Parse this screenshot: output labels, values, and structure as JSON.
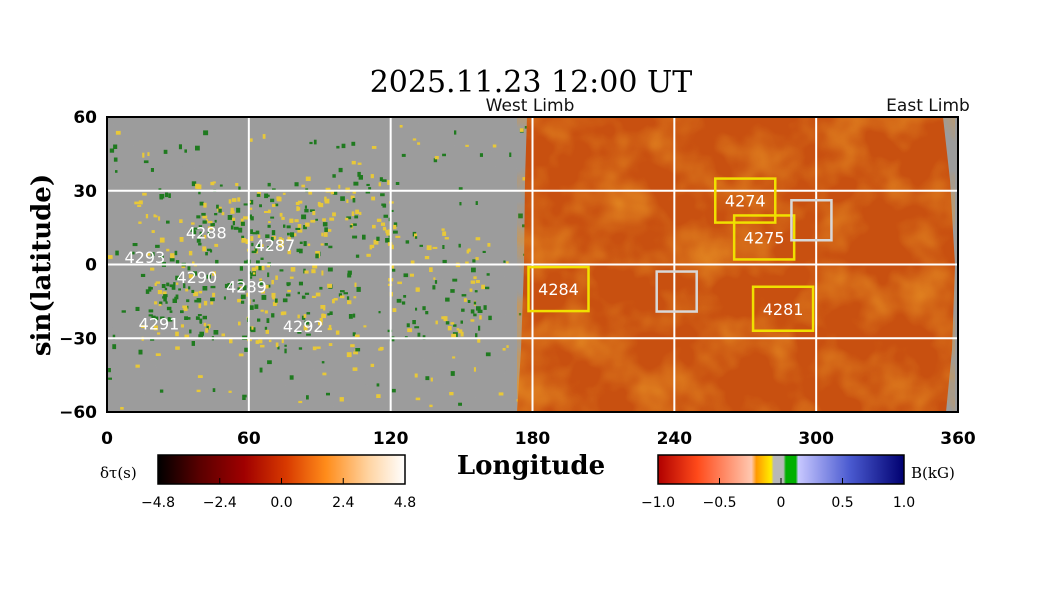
{
  "chart_data": {
    "type": "heatmap",
    "title": "2025.11.23 12:00 UT",
    "xlabel": "Longitude",
    "ylabel": "sin(latitude)",
    "xlim": [
      0,
      360
    ],
    "ylim": [
      -60,
      60
    ],
    "xticks": [
      "0",
      "60",
      "120",
      "180",
      "240",
      "300",
      "360"
    ],
    "yticks": [
      "60",
      "30",
      "0",
      "−30",
      "−60"
    ],
    "grid": true,
    "annotations": {
      "west_limb": "West Limb",
      "east_limb": "East Limb"
    },
    "active_regions": [
      {
        "label": "4293",
        "lon": 16,
        "lat": 3,
        "side": "near"
      },
      {
        "label": "4288",
        "lon": 42,
        "lat": 13,
        "side": "near"
      },
      {
        "label": "4287",
        "lon": 71,
        "lat": 8,
        "side": "near"
      },
      {
        "label": "4290",
        "lon": 38,
        "lat": -5,
        "side": "near"
      },
      {
        "label": "4289",
        "lon": 59,
        "lat": -9,
        "side": "near"
      },
      {
        "label": "4291",
        "lon": 22,
        "lat": -24,
        "side": "near"
      },
      {
        "label": "4292",
        "lon": 83,
        "lat": -25,
        "side": "near"
      },
      {
        "label": "4274",
        "lon": 270,
        "lat": 26,
        "side": "far"
      },
      {
        "label": "4275",
        "lon": 278,
        "lat": 11,
        "side": "far"
      },
      {
        "label": "4284",
        "lon": 191,
        "lat": -10,
        "side": "far"
      },
      {
        "label": "4281",
        "lon": 286,
        "lat": -18,
        "side": "far"
      }
    ],
    "unlabeled_boxes": [
      {
        "lon": 298,
        "lat": 18
      },
      {
        "lon": 241,
        "lat": -11
      }
    ],
    "colorbars": [
      {
        "label": "δτ(s)",
        "ticks": [
          "−4.8",
          "−2.4",
          "0.0",
          "2.4",
          "4.8"
        ],
        "range": [
          -4.8,
          4.8
        ],
        "colors": [
          "#000000",
          "#5a0000",
          "#a00000",
          "#d83a00",
          "#ff8c1a",
          "#ffd3a0",
          "#ffffff"
        ]
      },
      {
        "label": "B(kG)",
        "ticks": [
          "−1.0",
          "−0.5",
          "0",
          "0.5",
          "1.0"
        ],
        "range": [
          -1.0,
          1.0
        ],
        "colors": [
          "#b00000",
          "#ff4a1a",
          "#ffc8b0",
          "#ffee00",
          "#00b000",
          "#c8c8ff",
          "#000070"
        ]
      }
    ]
  }
}
